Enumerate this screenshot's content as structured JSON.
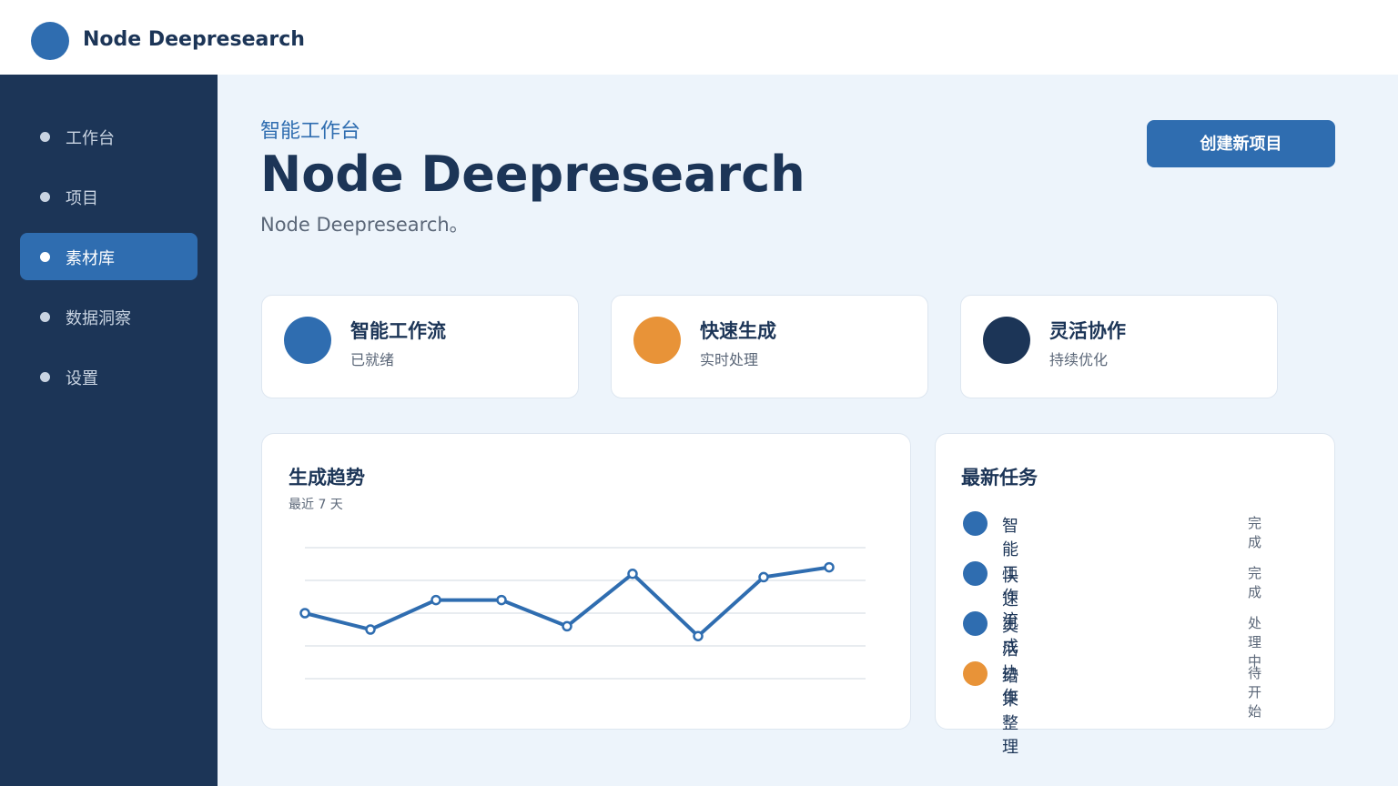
{
  "header": {
    "brand": "Node Deepresearch"
  },
  "sidebar": {
    "items": [
      "工作台",
      "项目",
      "素材库",
      "数据洞察",
      "设置"
    ],
    "active": 2
  },
  "hero": {
    "eyebrow": "智能工作台",
    "title": "Node Deepresearch",
    "subtitle": "Node Deepresearch。",
    "button": "创建新项目"
  },
  "cards": [
    {
      "title": "智能工作流",
      "subtitle": "已就绪",
      "color": "#2f6db0"
    },
    {
      "title": "快速生成",
      "subtitle": "实时处理",
      "color": "#e89338"
    },
    {
      "title": "灵活协作",
      "subtitle": "持续优化",
      "color": "#1c3557"
    }
  ],
  "chart_data": {
    "type": "line",
    "title": "生成趋势",
    "subtitle": "最近 7 天",
    "values": [
      2.0,
      1.5,
      2.4,
      2.4,
      1.6,
      3.2,
      1.3,
      3.1,
      3.4
    ],
    "color": "#2f6db0",
    "ylim": [
      0,
      4
    ],
    "yticks": [
      0,
      1,
      2,
      3,
      4
    ],
    "grid": true
  },
  "tasks": {
    "title": "最新任务",
    "rows": [
      {
        "name": "智能工作流",
        "status": "完成",
        "color": "#2f6db0"
      },
      {
        "name": "快速生成",
        "status": "完成",
        "color": "#2f6db0"
      },
      {
        "name": "灵活协作",
        "status": "处理中",
        "color": "#2f6db0"
      },
      {
        "name": "结果整理",
        "status": "待开始",
        "color": "#e89338"
      }
    ]
  }
}
